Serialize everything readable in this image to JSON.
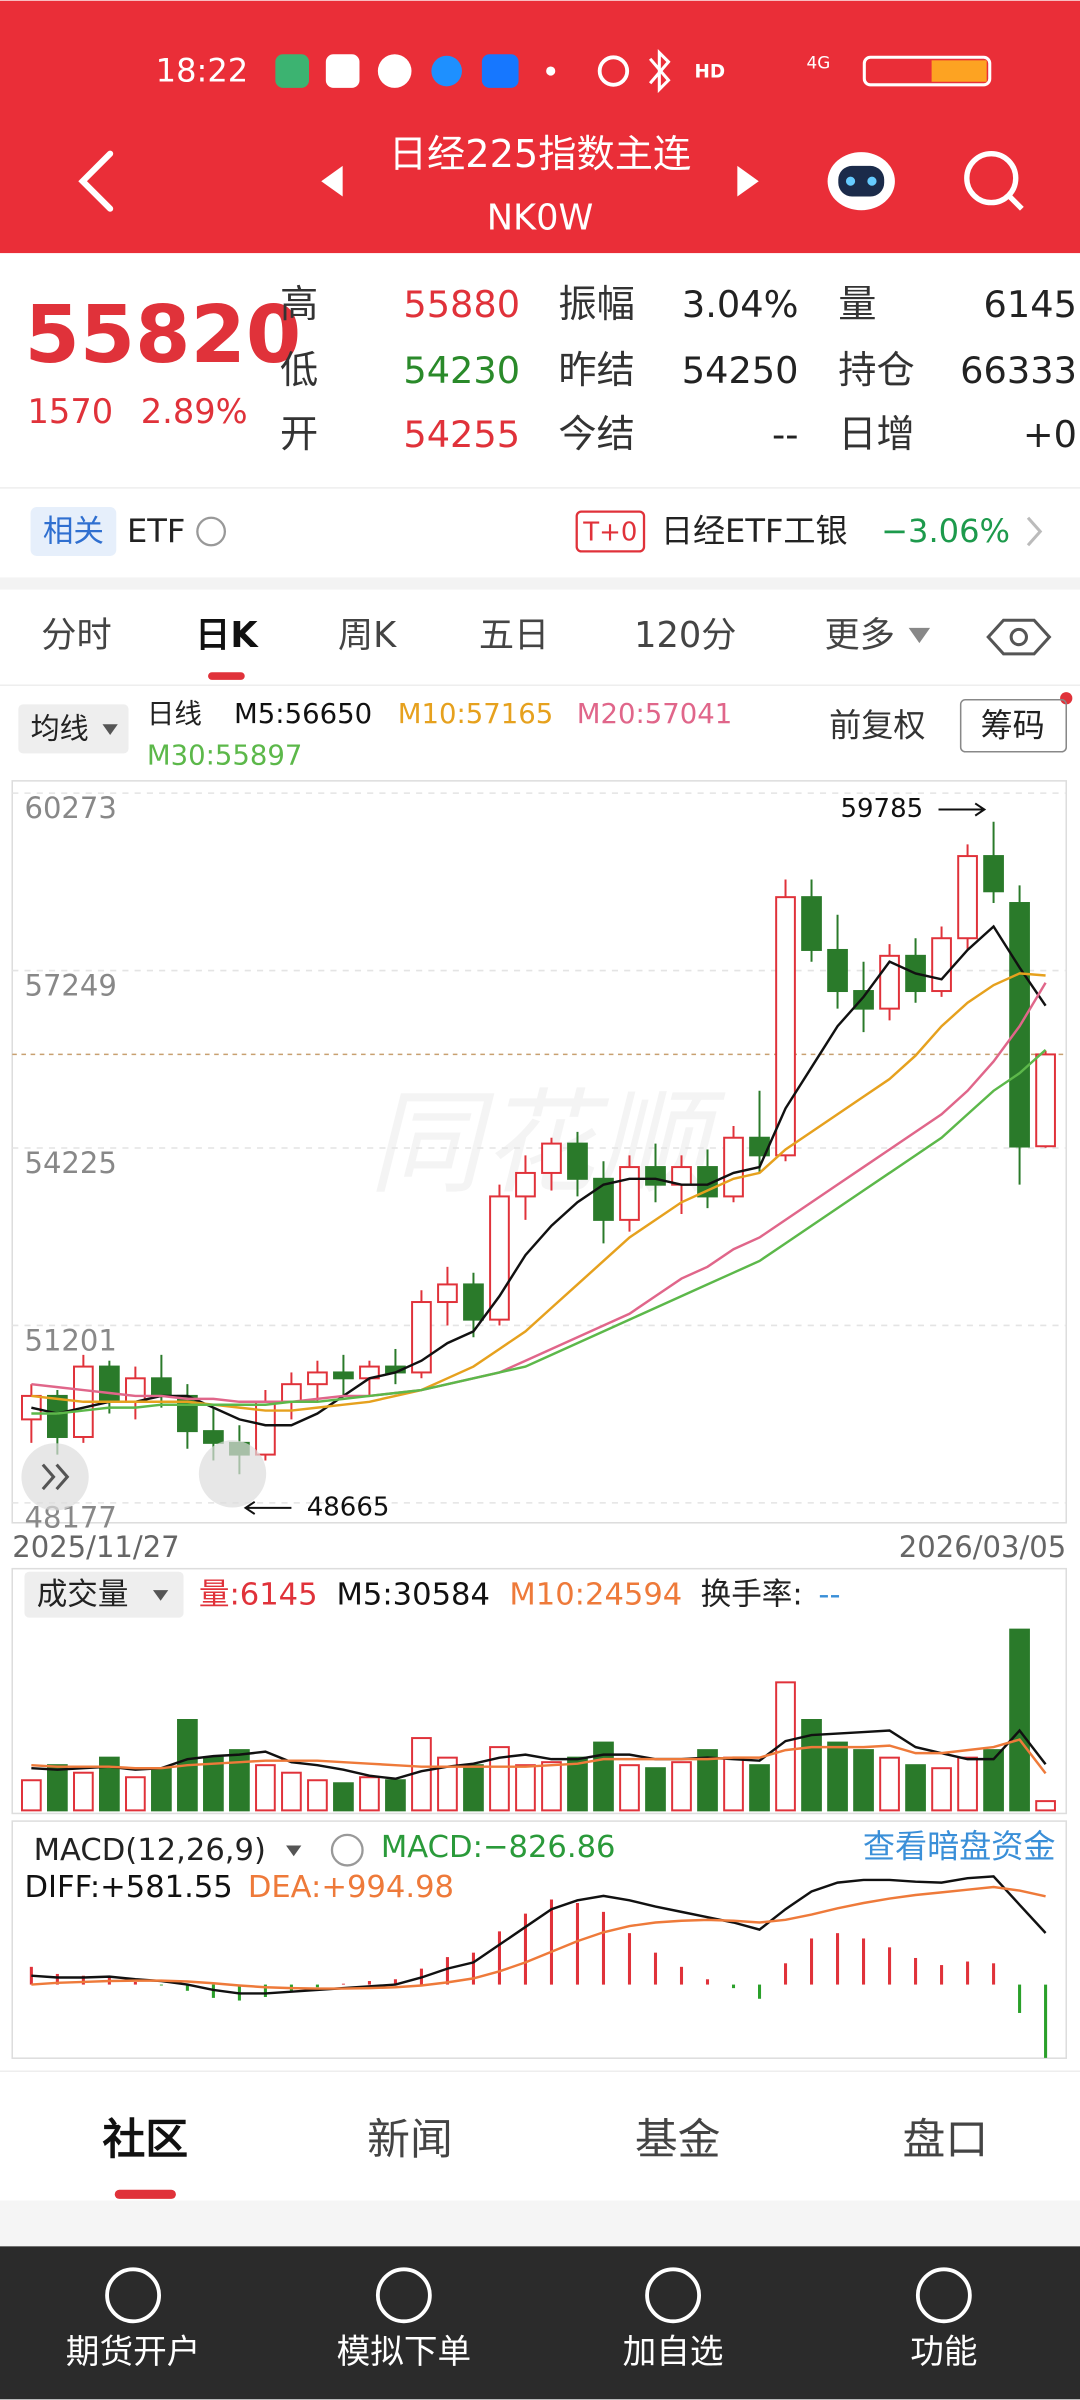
{
  "status_bar": {
    "time": "18:22",
    "hd": "HD",
    "network": "4G"
  },
  "header": {
    "title": "日经225指数主连",
    "code": "NK0W"
  },
  "quote": {
    "price": "55820",
    "change": "1570",
    "change_pct": "2.89%",
    "fields": [
      {
        "label": "高",
        "value": "55880",
        "color": "#e0323a"
      },
      {
        "label": "低",
        "value": "54230",
        "color": "#2a8a2a"
      },
      {
        "label": "开",
        "value": "54255",
        "color": "#e0323a"
      },
      {
        "label": "振幅",
        "value": "3.04%",
        "color": "#222222"
      },
      {
        "label": "昨结",
        "value": "54250",
        "color": "#222222"
      },
      {
        "label": "今结",
        "value": "--",
        "color": "#222222"
      },
      {
        "label": "量",
        "value": "6145",
        "color": "#222222"
      },
      {
        "label": "持仓",
        "value": "66333",
        "color": "#222222"
      },
      {
        "label": "日增",
        "value": "+0",
        "color": "#222222"
      }
    ]
  },
  "etf": {
    "tag": "相关",
    "label": "ETF",
    "t0": "T+0",
    "name": "日经ETF工银",
    "pct": "−3.06%"
  },
  "tabs": {
    "items": [
      "分时",
      "日K",
      "周K",
      "五日",
      "120分",
      "更多"
    ],
    "active": 1
  },
  "watermark": "同花顺",
  "chart_data": [
    {
      "type": "candlestick",
      "ma_button": "均线",
      "period": "日线",
      "adjust": "前复权",
      "chips": "筹码",
      "categories": [
        "2025/11/27",
        null,
        null,
        null,
        null,
        null,
        null,
        null,
        null,
        null,
        null,
        null,
        null,
        null,
        null,
        null,
        null,
        null,
        null,
        null,
        null,
        null,
        null,
        null,
        null,
        null,
        null,
        null,
        null,
        null,
        null,
        null,
        null,
        null,
        null,
        null,
        null,
        null,
        null,
        "2026/03/05"
      ],
      "open": [
        49600,
        50000,
        49300,
        50500,
        49900,
        50300,
        50000,
        49400,
        49200,
        49000,
        49900,
        50200,
        50400,
        50300,
        50500,
        50400,
        51600,
        51900,
        51300,
        53400,
        53800,
        54300,
        53700,
        53000,
        53900,
        53600,
        53900,
        53400,
        54400,
        54100,
        58500,
        57600,
        56900,
        56600,
        57500,
        56900,
        57800,
        59200,
        58400,
        54255
      ],
      "high": [
        50200,
        50100,
        50700,
        50600,
        50500,
        50700,
        50200,
        49800,
        49500,
        50100,
        50400,
        50600,
        50700,
        50600,
        50800,
        51800,
        52200,
        52100,
        53600,
        54100,
        54400,
        54500,
        54000,
        54100,
        54300,
        54100,
        54200,
        54600,
        55200,
        58800,
        58800,
        58200,
        57400,
        57700,
        57800,
        58000,
        59400,
        59785,
        58700,
        55880
      ],
      "low": [
        49200,
        49000,
        49200,
        49700,
        49600,
        49800,
        49100,
        48900,
        48665,
        48900,
        49600,
        49900,
        50000,
        50000,
        50200,
        50300,
        51200,
        51000,
        51200,
        53000,
        53500,
        53400,
        52600,
        52800,
        53300,
        53100,
        53200,
        53300,
        53800,
        54000,
        57400,
        56600,
        56200,
        56400,
        56700,
        56800,
        57600,
        58400,
        53600,
        54230
      ],
      "close": [
        50000,
        49300,
        50500,
        49900,
        50300,
        50000,
        49400,
        49200,
        49000,
        49900,
        50200,
        50400,
        50300,
        50500,
        50400,
        51600,
        51900,
        51300,
        53400,
        53800,
        54300,
        53700,
        53000,
        53900,
        53600,
        53900,
        53400,
        54400,
        54100,
        58500,
        57600,
        56900,
        56600,
        57500,
        56900,
        57800,
        59200,
        58600,
        54250,
        55820
      ],
      "up_color": "#e0323a",
      "down_color": "#2a7a2a",
      "series": [
        {
          "name": "M5:56650",
          "color": "#111111",
          "values": [
            49800,
            49700,
            49800,
            49900,
            49900,
            50000,
            50000,
            49800,
            49600,
            49500,
            49500,
            49700,
            50000,
            50300,
            50400,
            50600,
            50900,
            51100,
            51700,
            52400,
            52900,
            53300,
            53600,
            53700,
            53700,
            53600,
            53600,
            53800,
            53900,
            54900,
            55600,
            56300,
            56800,
            57400,
            57200,
            57100,
            57600,
            58000,
            57300,
            56650
          ]
        },
        {
          "name": "M10:57165",
          "color": "#e6a11e",
          "values": [
            50000,
            49950,
            49900,
            49900,
            49900,
            49900,
            49900,
            49850,
            49800,
            49750,
            49750,
            49800,
            49850,
            49900,
            50000,
            50100,
            50300,
            50500,
            50800,
            51100,
            51500,
            51900,
            52300,
            52700,
            53000,
            53300,
            53500,
            53700,
            53800,
            54200,
            54500,
            54800,
            55100,
            55400,
            55800,
            56300,
            56700,
            57000,
            57200,
            57165
          ]
        },
        {
          "name": "M20:57041",
          "color": "#e0668a",
          "values": [
            50200,
            50150,
            50100,
            50050,
            50000,
            50000,
            49950,
            49950,
            49900,
            49900,
            49900,
            49950,
            50000,
            50000,
            50050,
            50100,
            50200,
            50300,
            50400,
            50600,
            50800,
            51000,
            51200,
            51400,
            51700,
            52000,
            52200,
            52500,
            52700,
            53000,
            53300,
            53600,
            53900,
            54200,
            54500,
            54800,
            55200,
            55700,
            56300,
            57041
          ]
        },
        {
          "name": "M30:55897",
          "color": "#5cb84a",
          "values": [
            49700,
            49700,
            49750,
            49800,
            49800,
            49850,
            49850,
            49850,
            49850,
            49850,
            49900,
            49900,
            49950,
            50000,
            50050,
            50100,
            50200,
            50300,
            50400,
            50500,
            50700,
            50900,
            51100,
            51300,
            51500,
            51700,
            51900,
            52100,
            52300,
            52600,
            52900,
            53200,
            53500,
            53800,
            54100,
            54400,
            54800,
            55200,
            55500,
            55897
          ]
        }
      ],
      "ylim": [
        47838,
        60482
      ],
      "yticks": [
        48177,
        51201,
        54225,
        57249,
        60273
      ],
      "grid": true,
      "price_line": 55820,
      "annotations": [
        59785,
        48665
      ]
    },
    {
      "type": "bar",
      "indicator": "成交量",
      "current": "量:6145",
      "turnover": "换手率:",
      "turnover_value": "--",
      "values": [
        20000,
        30000,
        25000,
        35000,
        22000,
        28000,
        60000,
        35000,
        40000,
        30000,
        25000,
        20000,
        18000,
        22000,
        20000,
        48000,
        35000,
        30000,
        42000,
        30000,
        32000,
        35000,
        45000,
        30000,
        28000,
        32000,
        40000,
        35000,
        30000,
        85000,
        60000,
        45000,
        40000,
        35000,
        30000,
        28000,
        35000,
        40000,
        120000,
        6145
      ],
      "series": [
        {
          "name": "M5:30584",
          "color": "#111111",
          "values": [
            28000,
            27000,
            28000,
            29000,
            27000,
            28000,
            34000,
            36000,
            37000,
            39000,
            32000,
            30000,
            27000,
            23000,
            21000,
            26000,
            29000,
            31000,
            35000,
            37000,
            34000,
            34000,
            37000,
            37000,
            34000,
            34000,
            35000,
            34000,
            33000,
            46000,
            50000,
            51000,
            52000,
            53000,
            42000,
            38000,
            34000,
            34000,
            53000,
            30584
          ]
        },
        {
          "name": "M10:24594",
          "color": "#ee7a3a",
          "values": [
            30000,
            29000,
            29000,
            29000,
            28000,
            28000,
            30000,
            31000,
            32000,
            33000,
            33000,
            33000,
            32000,
            31000,
            30000,
            29000,
            29000,
            29000,
            29000,
            29000,
            30000,
            31000,
            34000,
            34000,
            34000,
            34000,
            34000,
            35000,
            35000,
            40000,
            42000,
            42000,
            42000,
            43000,
            38000,
            38000,
            40000,
            42000,
            47000,
            24594
          ]
        }
      ],
      "ylim": [
        0,
        130000
      ]
    },
    {
      "type": "macd",
      "indicator": "MACD(12,26,9)",
      "label": "MACD:−826.86",
      "link": "查看暗盘资金",
      "up_color": "#e0323a",
      "down_color": "#2aa02a",
      "values": [
        200,
        120,
        100,
        100,
        30,
        -10,
        -70,
        -150,
        -180,
        -140,
        -80,
        -30,
        10,
        40,
        60,
        180,
        310,
        360,
        600,
        800,
        960,
        920,
        820,
        580,
        360,
        200,
        60,
        -40,
        -160,
        240,
        520,
        580,
        520,
        420,
        300,
        220,
        260,
        240,
        -320,
        -826.86
      ],
      "series": [
        {
          "name": "DIFF:+581.55",
          "color": "#111111",
          "values": [
            100,
            80,
            80,
            90,
            60,
            40,
            0,
            -60,
            -100,
            -100,
            -80,
            -60,
            -40,
            -20,
            0,
            80,
            180,
            250,
            450,
            650,
            850,
            950,
            1000,
            950,
            880,
            820,
            760,
            700,
            620,
            850,
            1050,
            1150,
            1180,
            1180,
            1160,
            1150,
            1200,
            1220,
            900,
            581.55
          ]
        },
        {
          "name": "DEA:+994.98",
          "color": "#ee7a3a",
          "values": [
            0,
            20,
            30,
            40,
            45,
            45,
            35,
            15,
            -10,
            -30,
            -40,
            -45,
            -45,
            -40,
            -30,
            -10,
            25,
            70,
            150,
            250,
            370,
            490,
            590,
            660,
            700,
            720,
            730,
            720,
            700,
            730,
            790,
            860,
            920,
            970,
            1010,
            1040,
            1070,
            1100,
            1060,
            994.98
          ]
        }
      ],
      "ylim": [
        -830,
        1240
      ]
    }
  ],
  "bottom_tabs": {
    "items": [
      "社区",
      "新闻",
      "基金",
      "盘口"
    ],
    "active": 0
  },
  "footer": [
    "期货开户",
    "模拟下单",
    "加自选",
    "功能"
  ]
}
